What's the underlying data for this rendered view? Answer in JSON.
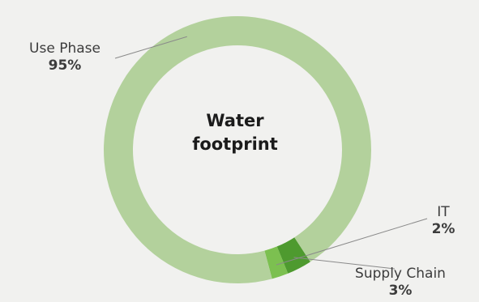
{
  "chart_data": {
    "type": "pie",
    "title": "Water footprint",
    "slices": [
      {
        "label": "Use Phase",
        "value_label": "95%",
        "value": 95,
        "color": "#b3d19c"
      },
      {
        "label": "IT",
        "value_label": "2%",
        "value": 2,
        "color": "#7cc050"
      },
      {
        "label": "Supply Chain",
        "value_label": "3%",
        "value": 3,
        "color": "#4e9a2f"
      }
    ],
    "leader_color": "#8a8a8a"
  },
  "colors": {
    "background": "#f1f1ef",
    "title": "#1b1b1b",
    "label": "#3c3c3c"
  }
}
